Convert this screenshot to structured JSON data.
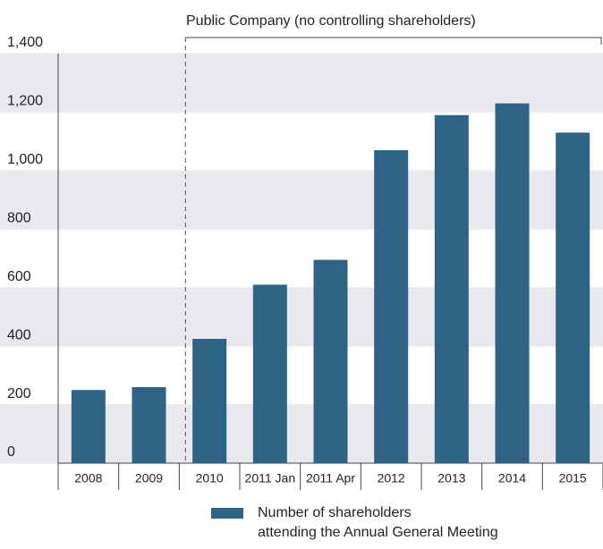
{
  "chart_data": {
    "type": "bar",
    "annotation": "Public Company (no controlling shareholders)",
    "categories": [
      "2008",
      "2009",
      "2010",
      "2011 Jan",
      "2011 Apr",
      "2012",
      "2013",
      "2014",
      "2015"
    ],
    "series": [
      {
        "name": "Number of shareholders\nattending the Annual General Meeting",
        "color": "#2e6386",
        "values": [
          250,
          260,
          425,
          610,
          695,
          1070,
          1190,
          1230,
          1130
        ]
      }
    ],
    "ylim": [
      0,
      1400
    ],
    "yticks": [
      0,
      200,
      400,
      600,
      800,
      {
        "value": 1000,
        "label": "1,000"
      },
      {
        "value": 1200,
        "label": "1,200"
      },
      {
        "value": 1400,
        "label": "1,400"
      }
    ],
    "grid": true,
    "legend": "bottom"
  }
}
